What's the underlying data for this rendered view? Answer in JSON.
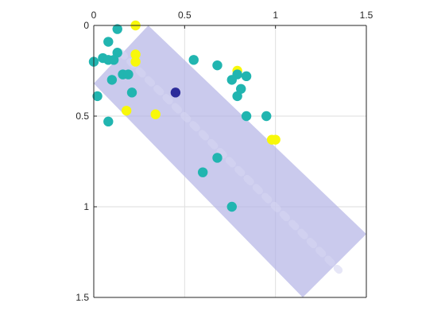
{
  "chart_data": {
    "type": "scatter",
    "title": "",
    "xlabel": "",
    "ylabel": "",
    "xlim": [
      0,
      1.5
    ],
    "ylim": [
      0,
      1.5
    ],
    "x_axis_location": "top",
    "y_axis_direction": "reversed",
    "grid": true,
    "x_ticks": [
      {
        "value": 0,
        "label": "0"
      },
      {
        "value": 0.5,
        "label": "0.5"
      },
      {
        "value": 1,
        "label": "1"
      },
      {
        "value": 1.5,
        "label": "1.5"
      }
    ],
    "y_ticks": [
      {
        "value": 0,
        "label": "0"
      },
      {
        "value": 0.5,
        "label": "0.5"
      },
      {
        "value": 1,
        "label": "1"
      },
      {
        "value": 1.5,
        "label": "1.5"
      }
    ],
    "band": {
      "description": "shaded diagonal band",
      "color": "#b4b4e6",
      "opacity": 0.7,
      "upper_edge": [
        [
          0.3,
          0
        ],
        [
          1.5,
          1.15
        ]
      ],
      "lower_edge": [
        [
          0,
          0.32
        ],
        [
          1.15,
          1.5
        ]
      ],
      "center_line": [
        [
          0.15,
          0.15
        ],
        [
          1.35,
          1.35
        ]
      ]
    },
    "colors": {
      "teal": "#21b5b0",
      "yellow": "#f8f80a",
      "navy": "#2c2c9a"
    },
    "points": [
      {
        "x": 0.13,
        "y": 0.02,
        "color": "teal"
      },
      {
        "x": 0.23,
        "y": 0.0,
        "color": "yellow"
      },
      {
        "x": 0.08,
        "y": 0.09,
        "color": "teal"
      },
      {
        "x": 0.13,
        "y": 0.15,
        "color": "teal"
      },
      {
        "x": 0.23,
        "y": 0.16,
        "color": "yellow"
      },
      {
        "x": 0.23,
        "y": 0.2,
        "color": "yellow"
      },
      {
        "x": 0.0,
        "y": 0.2,
        "color": "teal"
      },
      {
        "x": 0.05,
        "y": 0.18,
        "color": "teal"
      },
      {
        "x": 0.08,
        "y": 0.19,
        "color": "teal"
      },
      {
        "x": 0.11,
        "y": 0.19,
        "color": "teal"
      },
      {
        "x": 0.16,
        "y": 0.27,
        "color": "teal"
      },
      {
        "x": 0.19,
        "y": 0.27,
        "color": "teal"
      },
      {
        "x": 0.1,
        "y": 0.3,
        "color": "teal"
      },
      {
        "x": 0.21,
        "y": 0.37,
        "color": "teal"
      },
      {
        "x": 0.02,
        "y": 0.39,
        "color": "teal"
      },
      {
        "x": 0.18,
        "y": 0.47,
        "color": "yellow"
      },
      {
        "x": 0.34,
        "y": 0.49,
        "color": "yellow"
      },
      {
        "x": 0.08,
        "y": 0.53,
        "color": "teal"
      },
      {
        "x": 0.45,
        "y": 0.37,
        "color": "navy"
      },
      {
        "x": 0.55,
        "y": 0.19,
        "color": "teal"
      },
      {
        "x": 0.68,
        "y": 0.22,
        "color": "teal"
      },
      {
        "x": 0.79,
        "y": 0.25,
        "color": "yellow"
      },
      {
        "x": 0.79,
        "y": 0.27,
        "color": "teal"
      },
      {
        "x": 0.76,
        "y": 0.3,
        "color": "teal"
      },
      {
        "x": 0.84,
        "y": 0.28,
        "color": "teal"
      },
      {
        "x": 0.81,
        "y": 0.35,
        "color": "teal"
      },
      {
        "x": 0.79,
        "y": 0.39,
        "color": "teal"
      },
      {
        "x": 0.84,
        "y": 0.5,
        "color": "teal"
      },
      {
        "x": 0.95,
        "y": 0.5,
        "color": "teal"
      },
      {
        "x": 0.98,
        "y": 0.63,
        "color": "yellow"
      },
      {
        "x": 1.0,
        "y": 0.63,
        "color": "yellow"
      },
      {
        "x": 0.68,
        "y": 0.73,
        "color": "teal"
      },
      {
        "x": 0.6,
        "y": 0.81,
        "color": "teal"
      },
      {
        "x": 0.76,
        "y": 1.0,
        "color": "teal"
      }
    ]
  }
}
